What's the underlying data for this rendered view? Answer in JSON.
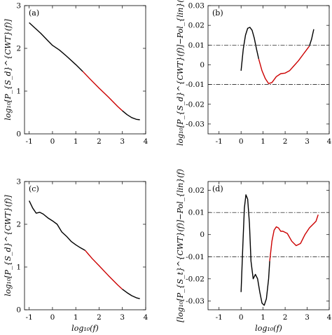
{
  "chart_data": [
    {
      "id": "a",
      "panel_label": "(a)",
      "type": "line",
      "ylabel": "log₁₀[P_{S_d}^{CWT}(f)]",
      "xlabel": "",
      "xlim": [
        -1.2,
        4.0
      ],
      "ylim": [
        0,
        3
      ],
      "xticks": [
        -1,
        0,
        1,
        2,
        3,
        4
      ],
      "yticks": [
        0,
        1,
        2,
        3
      ],
      "ytick_format": "int",
      "reference_lines": [],
      "series": [
        {
          "color": "#000000",
          "x": [
            -1.0,
            -0.8,
            -0.5,
            -0.2,
            0.0,
            0.3,
            0.6,
            1.0,
            1.3
          ],
          "y": [
            2.6,
            2.5,
            2.35,
            2.18,
            2.07,
            1.96,
            1.82,
            1.62,
            1.46
          ]
        },
        {
          "color": "#cc0000",
          "x": [
            1.3,
            1.6,
            2.0,
            2.4,
            2.8,
            3.0
          ],
          "y": [
            1.46,
            1.29,
            1.07,
            0.86,
            0.64,
            0.54
          ]
        },
        {
          "color": "#000000",
          "x": [
            3.0,
            3.2,
            3.4,
            3.6,
            3.75
          ],
          "y": [
            0.54,
            0.45,
            0.38,
            0.34,
            0.33
          ]
        }
      ]
    },
    {
      "id": "b",
      "panel_label": "(b)",
      "type": "line",
      "ylabel": "log₁₀[P_{S_d}^{CWT}(f)]−Pol_{lin}(f)",
      "xlabel": "",
      "xlim": [
        -1.5,
        4.0
      ],
      "ylim": [
        -0.035,
        0.03
      ],
      "xticks": [
        -1,
        0,
        1,
        2,
        3,
        4
      ],
      "yticks": [
        0.03,
        0.02,
        0.01,
        0,
        -0.01,
        -0.02,
        -0.03
      ],
      "ytick_labels": [
        "0.03",
        "0.02",
        "0.01",
        "0",
        "-0.01",
        "-0.02",
        "-0.03"
      ],
      "ytick_format": "dec",
      "reference_lines": [
        0.01,
        -0.01
      ],
      "series": [
        {
          "color": "#000000",
          "x": [
            0.0,
            0.1,
            0.2,
            0.3,
            0.4,
            0.5,
            0.6,
            0.7,
            0.8
          ],
          "y": [
            -0.003,
            0.008,
            0.015,
            0.0185,
            0.019,
            0.0175,
            0.0135,
            0.008,
            0.003
          ]
        },
        {
          "color": "#cc0000",
          "x": [
            0.8,
            0.95,
            1.1,
            1.25,
            1.4,
            1.6,
            1.8,
            2.0,
            2.2,
            2.4,
            2.6,
            2.8,
            3.0,
            3.1
          ],
          "y": [
            0.003,
            -0.003,
            -0.007,
            -0.0095,
            -0.009,
            -0.006,
            -0.0045,
            -0.0042,
            -0.003,
            -0.0005,
            0.002,
            0.005,
            0.008,
            0.0095
          ]
        },
        {
          "color": "#000000",
          "x": [
            3.1,
            3.2,
            3.3
          ],
          "y": [
            0.0095,
            0.013,
            0.018
          ]
        }
      ]
    },
    {
      "id": "c",
      "panel_label": "(c)",
      "type": "line",
      "ylabel": "log₁₀[P_{S_d}^{CWT}(f)]",
      "xlabel": "log₁₀(f)",
      "xlim": [
        -1.2,
        4.0
      ],
      "ylim": [
        0,
        3
      ],
      "xticks": [
        -1,
        0,
        1,
        2,
        3,
        4
      ],
      "yticks": [
        0,
        1,
        2,
        3
      ],
      "ytick_format": "int",
      "reference_lines": [],
      "series": [
        {
          "color": "#000000",
          "x": [
            -1.0,
            -0.85,
            -0.7,
            -0.55,
            -0.4,
            -0.2,
            0.0,
            0.2,
            0.4,
            0.6,
            0.8,
            1.0,
            1.2,
            1.4
          ],
          "y": [
            2.55,
            2.38,
            2.26,
            2.28,
            2.24,
            2.15,
            2.08,
            2.0,
            1.82,
            1.72,
            1.6,
            1.52,
            1.45,
            1.39
          ]
        },
        {
          "color": "#cc0000",
          "x": [
            1.4,
            1.7,
            2.0,
            2.4,
            2.8,
            3.0
          ],
          "y": [
            1.39,
            1.2,
            1.03,
            0.8,
            0.58,
            0.48
          ]
        },
        {
          "color": "#000000",
          "x": [
            3.0,
            3.2,
            3.4,
            3.6,
            3.75
          ],
          "y": [
            0.48,
            0.4,
            0.33,
            0.28,
            0.26
          ]
        }
      ]
    },
    {
      "id": "d",
      "panel_label": "(d)",
      "type": "line",
      "ylabel": "[log₁₀[P_{S_t}^{CWT}(f)]−Pol_{lin}(f)",
      "xlabel": "log₁₀(f)",
      "xlim": [
        -1.5,
        4.0
      ],
      "ylim": [
        -0.034,
        0.024
      ],
      "xticks": [
        -1,
        0,
        1,
        2,
        3,
        4
      ],
      "yticks": [
        0.02,
        0.01,
        0,
        -0.01,
        -0.02,
        -0.03
      ],
      "ytick_labels": [
        "0.02",
        "0.01",
        "0",
        "-0.01",
        "-0.02",
        "-0.03"
      ],
      "ytick_format": "dec",
      "reference_lines": [
        0.01,
        -0.01
      ],
      "series": [
        {
          "color": "#000000",
          "x": [
            0.0,
            0.08,
            0.15,
            0.22,
            0.3,
            0.38,
            0.45,
            0.55,
            0.65,
            0.75,
            0.85,
            0.95,
            1.05,
            1.15,
            1.25,
            1.3
          ],
          "y": [
            -0.026,
            -0.005,
            0.012,
            0.018,
            0.016,
            0.005,
            -0.012,
            -0.02,
            -0.018,
            -0.02,
            -0.026,
            -0.031,
            -0.032,
            -0.029,
            -0.02,
            -0.012
          ]
        },
        {
          "color": "#cc0000",
          "x": [
            1.3,
            1.4,
            1.5,
            1.6,
            1.7,
            1.8,
            1.9,
            2.1,
            2.3,
            2.5,
            2.7,
            2.9,
            3.1,
            3.3,
            3.4,
            3.5
          ],
          "y": [
            -0.012,
            -0.003,
            0.002,
            0.0035,
            0.003,
            0.0015,
            0.0015,
            0.0005,
            -0.003,
            -0.005,
            -0.004,
            0.0,
            0.003,
            0.005,
            0.006,
            0.009
          ]
        }
      ]
    }
  ]
}
